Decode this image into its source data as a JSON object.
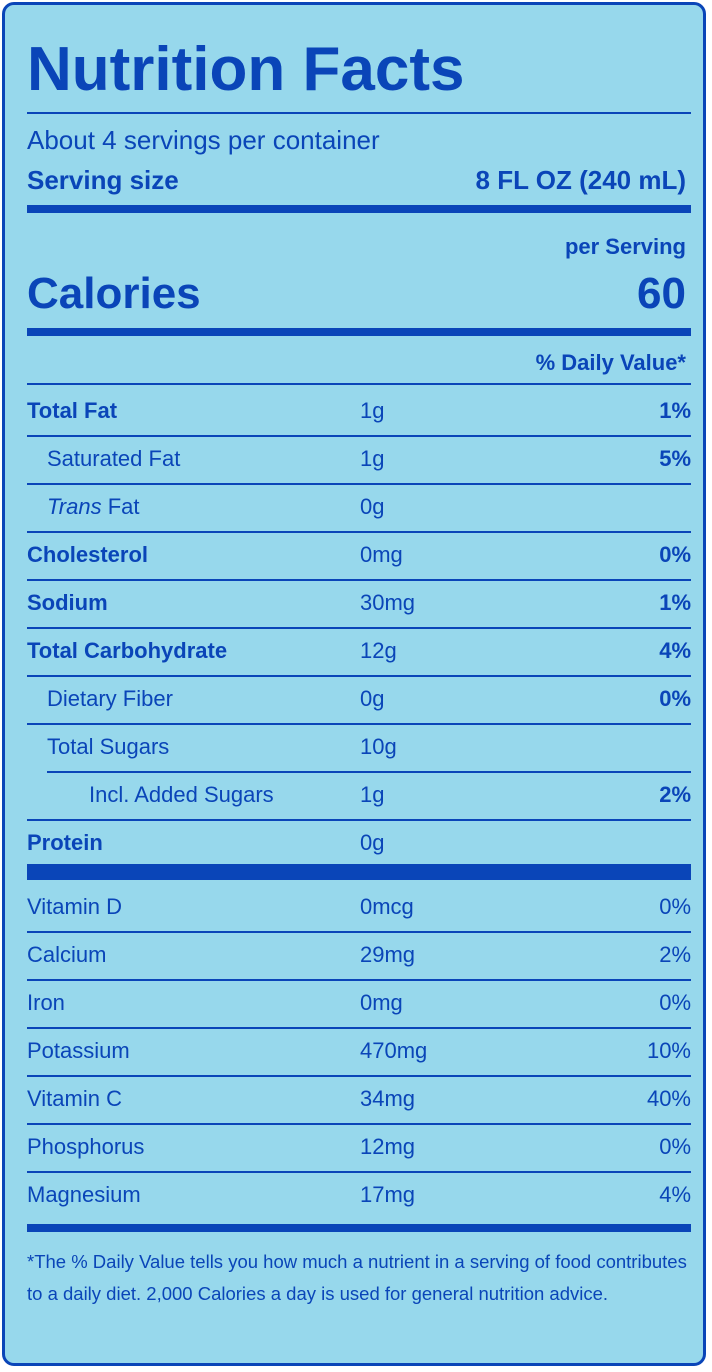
{
  "title": "Nutrition Facts",
  "servings_per_container": "About 4 servings per container",
  "serving_size_label": "Serving size",
  "serving_size_value": "8 FL OZ (240 mL)",
  "per_serving": "per Serving",
  "calories_label": "Calories",
  "calories_value": "60",
  "daily_value_header": "% Daily Value*",
  "nutrients": [
    {
      "name": "Total Fat",
      "amount": "1g",
      "dv": "1%"
    },
    {
      "name": "Saturated Fat",
      "amount": "1g",
      "dv": "5%"
    },
    {
      "name_italic": "Trans",
      "name_rest": " Fat",
      "amount": "0g",
      "dv": ""
    },
    {
      "name": "Cholesterol",
      "amount": "0mg",
      "dv": "0%"
    },
    {
      "name": "Sodium",
      "amount": "30mg",
      "dv": "1%"
    },
    {
      "name": "Total Carbohydrate",
      "amount": "12g",
      "dv": "4%"
    },
    {
      "name": "Dietary Fiber",
      "amount": "0g",
      "dv": "0%"
    },
    {
      "name": "Total Sugars",
      "amount": "10g",
      "dv": ""
    },
    {
      "name": "Incl. Added Sugars",
      "amount": "1g",
      "dv": "2%"
    },
    {
      "name": "Protein",
      "amount": "0g",
      "dv": ""
    }
  ],
  "micronutrients": [
    {
      "name": "Vitamin D",
      "amount": "0mcg",
      "dv": "0%"
    },
    {
      "name": "Calcium",
      "amount": "29mg",
      "dv": "2%"
    },
    {
      "name": "Iron",
      "amount": "0mg",
      "dv": "0%"
    },
    {
      "name": "Potassium",
      "amount": "470mg",
      "dv": "10%"
    },
    {
      "name": "Vitamin C",
      "amount": "34mg",
      "dv": "40%"
    },
    {
      "name": "Phosphorus",
      "amount": "12mg",
      "dv": "0%"
    },
    {
      "name": "Magnesium",
      "amount": "17mg",
      "dv": "4%"
    }
  ],
  "footnote": "*The % Daily Value tells you how much a nutrient in a serving of food contributes to a daily diet. 2,000 Calories a day is used for general nutrition advice.",
  "colors": {
    "background": "#97d8ec",
    "ink": "#0a45b8"
  }
}
